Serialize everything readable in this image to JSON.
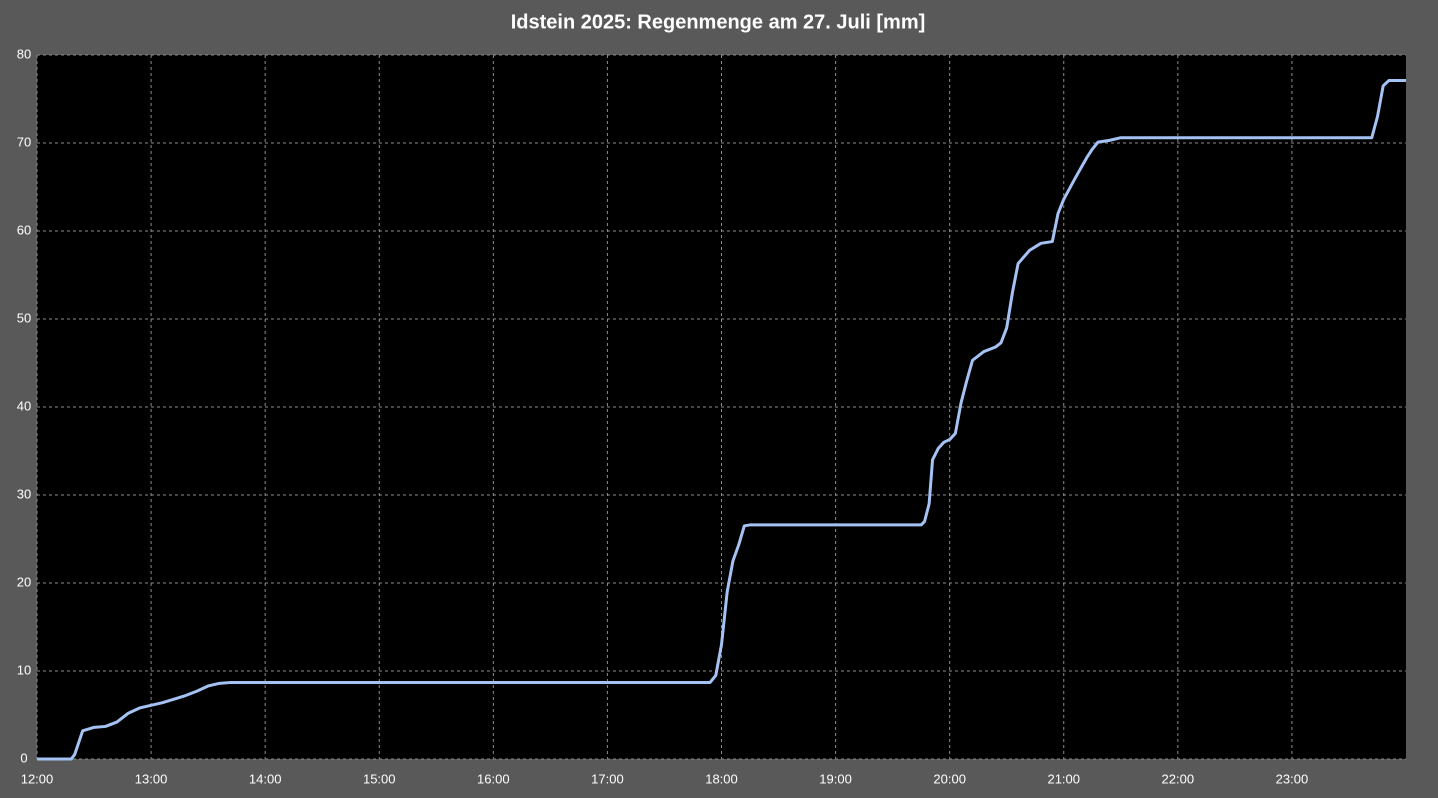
{
  "chart_data": {
    "type": "line",
    "title": "Idstein 2025:  Regenmenge am 27. Juli  [mm]",
    "x": [
      12,
      12.3,
      12.33,
      12.4,
      12.5,
      12.6,
      12.7,
      12.8,
      12.9,
      13.0,
      13.1,
      13.2,
      13.3,
      13.4,
      13.5,
      13.6,
      13.7,
      17.9,
      17.95,
      18.0,
      18.05,
      18.1,
      18.15,
      18.2,
      18.25,
      19.75,
      19.78,
      19.82,
      19.85,
      19.9,
      19.95,
      20.0,
      20.05,
      20.1,
      20.15,
      20.2,
      20.3,
      20.4,
      20.45,
      20.5,
      20.55,
      20.6,
      20.7,
      20.8,
      20.9,
      20.95,
      21.0,
      21.1,
      21.2,
      21.25,
      21.3,
      21.4,
      21.5,
      23.7,
      23.75,
      23.8,
      23.85,
      24.0
    ],
    "values": [
      0,
      0,
      0.5,
      3.2,
      3.6,
      3.7,
      4.2,
      5.2,
      5.8,
      6.1,
      6.4,
      6.8,
      7.2,
      7.7,
      8.3,
      8.6,
      8.7,
      8.7,
      9.5,
      13,
      19,
      22.5,
      24.3,
      26.5,
      26.6,
      26.6,
      27,
      29,
      34,
      35.3,
      36,
      36.3,
      37,
      40.5,
      43,
      45.3,
      46.3,
      46.8,
      47.3,
      49,
      53,
      56.3,
      57.8,
      58.6,
      58.8,
      62,
      63.6,
      66,
      68.3,
      69.3,
      70.1,
      70.3,
      70.6,
      70.6,
      73,
      76.5,
      77.1,
      77.1
    ],
    "color": "#a4c2f4",
    "xlim": [
      12,
      24
    ],
    "xticks": [
      {
        "value": 12,
        "label": "12:00"
      },
      {
        "value": 13,
        "label": "13:00"
      },
      {
        "value": 14,
        "label": "14:00"
      },
      {
        "value": 15,
        "label": "15:00"
      },
      {
        "value": 16,
        "label": "16:00"
      },
      {
        "value": 17,
        "label": "17:00"
      },
      {
        "value": 18,
        "label": "18:00"
      },
      {
        "value": 19,
        "label": "19:00"
      },
      {
        "value": 20,
        "label": "20:00"
      },
      {
        "value": 21,
        "label": "21:00"
      },
      {
        "value": 22,
        "label": "22:00"
      },
      {
        "value": 23,
        "label": "23:00"
      }
    ],
    "ylim": [
      0,
      80
    ],
    "yticks": [
      0,
      10,
      20,
      30,
      40,
      50,
      60,
      70,
      80
    ],
    "grid": true
  }
}
